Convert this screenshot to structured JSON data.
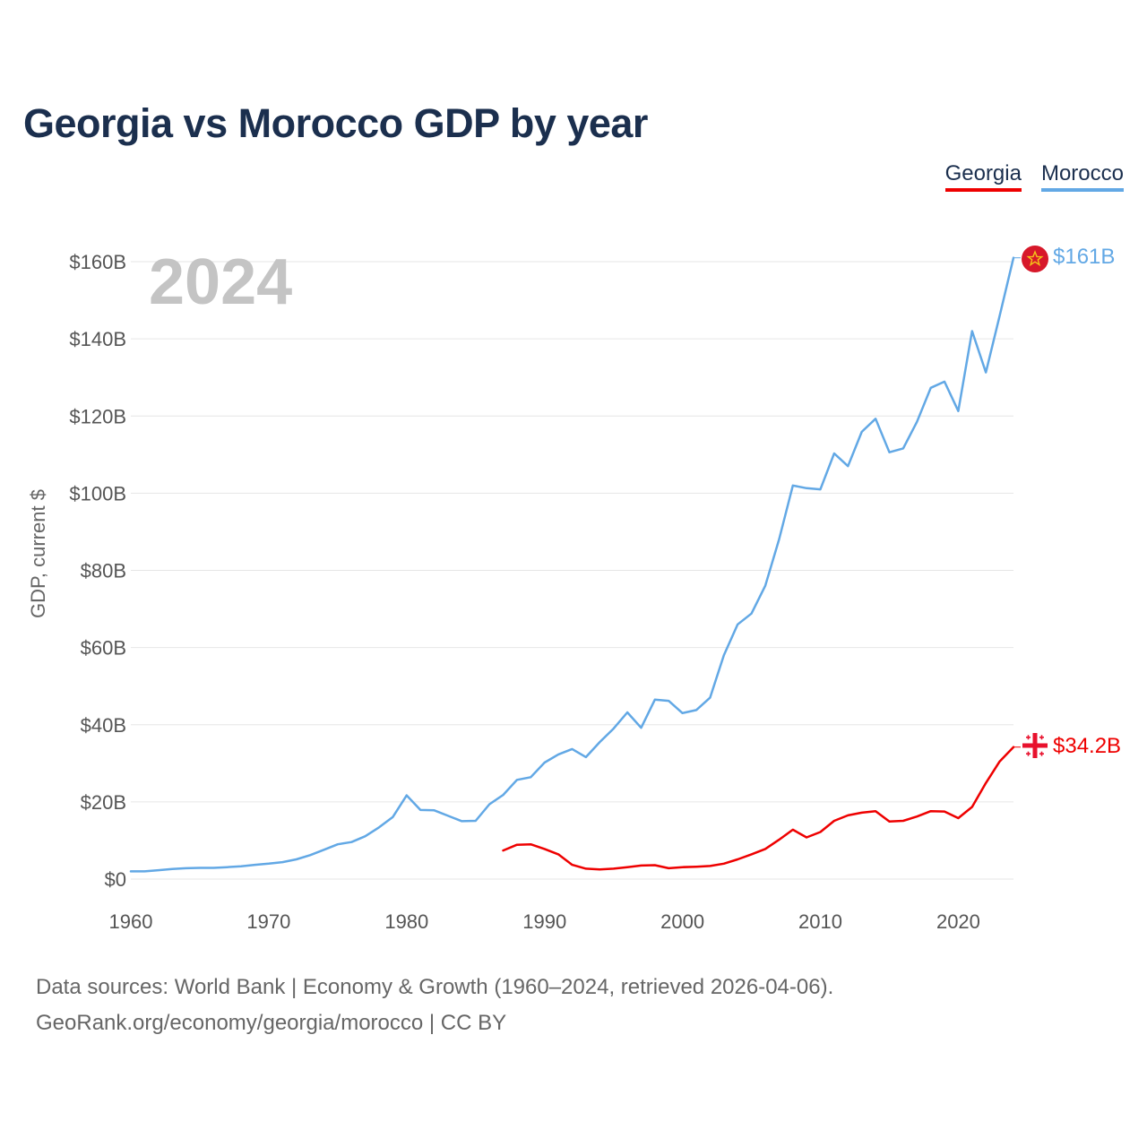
{
  "header": {
    "title": "Georgia vs Morocco GDP by year"
  },
  "legend": {
    "georgia": "Georgia",
    "morocco": "Morocco"
  },
  "colors": {
    "georgia": "#ee0000",
    "morocco": "#62a8e5",
    "grid": "#e6e6e6",
    "title": "#1b2f4e"
  },
  "icons": {
    "morocco_flag": "morocco-flag-icon",
    "georgia_flag": "georgia-flag-icon"
  },
  "footer": {
    "line1": "Data sources: World Bank | Economy & Growth (1960–2024, retrieved 2026-04-06).",
    "line2": "GeoRank.org/economy/georgia/morocco | CC BY"
  },
  "chart_data": {
    "type": "line",
    "title": "Georgia vs Morocco GDP by year",
    "year_label": "2024",
    "xlabel": "",
    "ylabel": "GDP, current $",
    "xlim": [
      1960,
      2024
    ],
    "ylim": [
      0,
      160
    ],
    "unit": "billion USD",
    "x_ticks": [
      1960,
      1970,
      1980,
      1990,
      2000,
      2010,
      2020
    ],
    "y_ticks": [
      0,
      20,
      40,
      60,
      80,
      100,
      120,
      140,
      160
    ],
    "y_tick_labels": [
      "$0",
      "$20B",
      "$40B",
      "$60B",
      "$80B",
      "$100B",
      "$120B",
      "$140B",
      "$160B"
    ],
    "series": [
      {
        "name": "Morocco",
        "end_label": "$161B",
        "x": [
          1960,
          1961,
          1962,
          1963,
          1964,
          1965,
          1966,
          1967,
          1968,
          1969,
          1970,
          1971,
          1972,
          1973,
          1974,
          1975,
          1976,
          1977,
          1978,
          1979,
          1980,
          1981,
          1982,
          1983,
          1984,
          1985,
          1986,
          1987,
          1988,
          1989,
          1990,
          1991,
          1992,
          1993,
          1994,
          1995,
          1996,
          1997,
          1998,
          1999,
          2000,
          2001,
          2002,
          2003,
          2004,
          2005,
          2006,
          2007,
          2008,
          2009,
          2010,
          2011,
          2012,
          2013,
          2014,
          2015,
          2016,
          2017,
          2018,
          2019,
          2020,
          2021,
          2022,
          2023,
          2024
        ],
        "values": [
          2.0,
          2.0,
          2.3,
          2.6,
          2.8,
          2.9,
          2.9,
          3.1,
          3.3,
          3.7,
          4.0,
          4.4,
          5.1,
          6.2,
          7.6,
          9.0,
          9.6,
          11.1,
          13.4,
          16.1,
          21.7,
          17.9,
          17.8,
          16.4,
          15.0,
          15.1,
          19.4,
          21.8,
          25.7,
          26.4,
          30.2,
          32.3,
          33.7,
          31.6,
          35.5,
          39.0,
          43.2,
          39.2,
          46.5,
          46.2,
          43.0,
          43.8,
          47.0,
          58.0,
          66.0,
          68.8,
          76.0,
          88.0,
          102.0,
          101.3,
          101.0,
          110.3,
          107.0,
          115.9,
          119.3,
          110.6,
          111.6,
          118.5,
          127.3,
          128.9,
          121.3,
          142.0,
          131.3,
          146.0,
          161.0
        ]
      },
      {
        "name": "Georgia",
        "end_label": "$34.2B",
        "x": [
          1987,
          1988,
          1989,
          1990,
          1991,
          1992,
          1993,
          1994,
          1995,
          1996,
          1997,
          1998,
          1999,
          2000,
          2001,
          2002,
          2003,
          2004,
          2005,
          2006,
          2007,
          2008,
          2009,
          2010,
          2011,
          2012,
          2013,
          2014,
          2015,
          2016,
          2017,
          2018,
          2019,
          2020,
          2021,
          2022,
          2023,
          2024
        ],
        "values": [
          7.4,
          8.9,
          9.0,
          7.8,
          6.4,
          3.7,
          2.7,
          2.5,
          2.7,
          3.1,
          3.5,
          3.6,
          2.8,
          3.1,
          3.2,
          3.4,
          4.0,
          5.1,
          6.4,
          7.8,
          10.2,
          12.8,
          10.8,
          12.2,
          15.1,
          16.5,
          17.2,
          17.6,
          14.9,
          15.1,
          16.2,
          17.6,
          17.5,
          15.8,
          18.7,
          24.9,
          30.5,
          34.2
        ]
      }
    ]
  }
}
